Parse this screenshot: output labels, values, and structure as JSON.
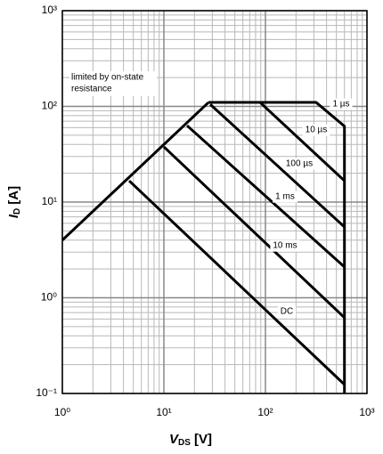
{
  "chart_data": {
    "type": "line",
    "log_x": true,
    "log_y": true,
    "grid": true,
    "xlabel": {
      "symbol": "V",
      "subscript": "DS",
      "unit": "[V]"
    },
    "ylabel": {
      "symbol": "I",
      "subscript": "D",
      "unit": "[A]"
    },
    "annotation": [
      "limited by on-state",
      "resistance"
    ],
    "xlim": [
      1,
      1000
    ],
    "xticks": [
      {
        "value": 1,
        "label": "10⁰"
      },
      {
        "value": 10,
        "label": "10¹"
      },
      {
        "value": 100,
        "label": "10²"
      },
      {
        "value": 1000,
        "label": "10³"
      }
    ],
    "ylim": [
      0.1,
      1000
    ],
    "yticks": [
      {
        "value": 0.1,
        "label": "10⁻¹"
      },
      {
        "value": 1,
        "label": "10⁰"
      },
      {
        "value": 10,
        "label": "10¹"
      },
      {
        "value": 100,
        "label": "10²"
      },
      {
        "value": 1000,
        "label": "10³"
      }
    ],
    "series": [
      {
        "color": "#000000",
        "x": [
          1,
          27.5
        ],
        "values": [
          4,
          110
        ]
      },
      {
        "name": "1 µs",
        "color": "#000000",
        "x": [
          27.5,
          316,
          600,
          600
        ],
        "values": [
          110,
          110,
          62,
          0.1
        ]
      },
      {
        "name": "10 µs",
        "color": "#000000",
        "x": [
          88.6,
          600
        ],
        "values": [
          110,
          16.7
        ]
      },
      {
        "name": "100 µs",
        "color": "#000000",
        "x": [
          28.6,
          600
        ],
        "values": [
          105,
          5.5
        ]
      },
      {
        "name": "1 ms",
        "color": "#000000",
        "x": [
          16.9,
          600
        ],
        "values": [
          63,
          2.1
        ]
      },
      {
        "name": "10 ms",
        "color": "#000000",
        "x": [
          10,
          600
        ],
        "values": [
          37.8,
          0.62
        ]
      },
      {
        "name": "DC",
        "color": "#000000",
        "x": [
          4.55,
          600
        ],
        "values": [
          16.7,
          0.124
        ]
      }
    ]
  }
}
